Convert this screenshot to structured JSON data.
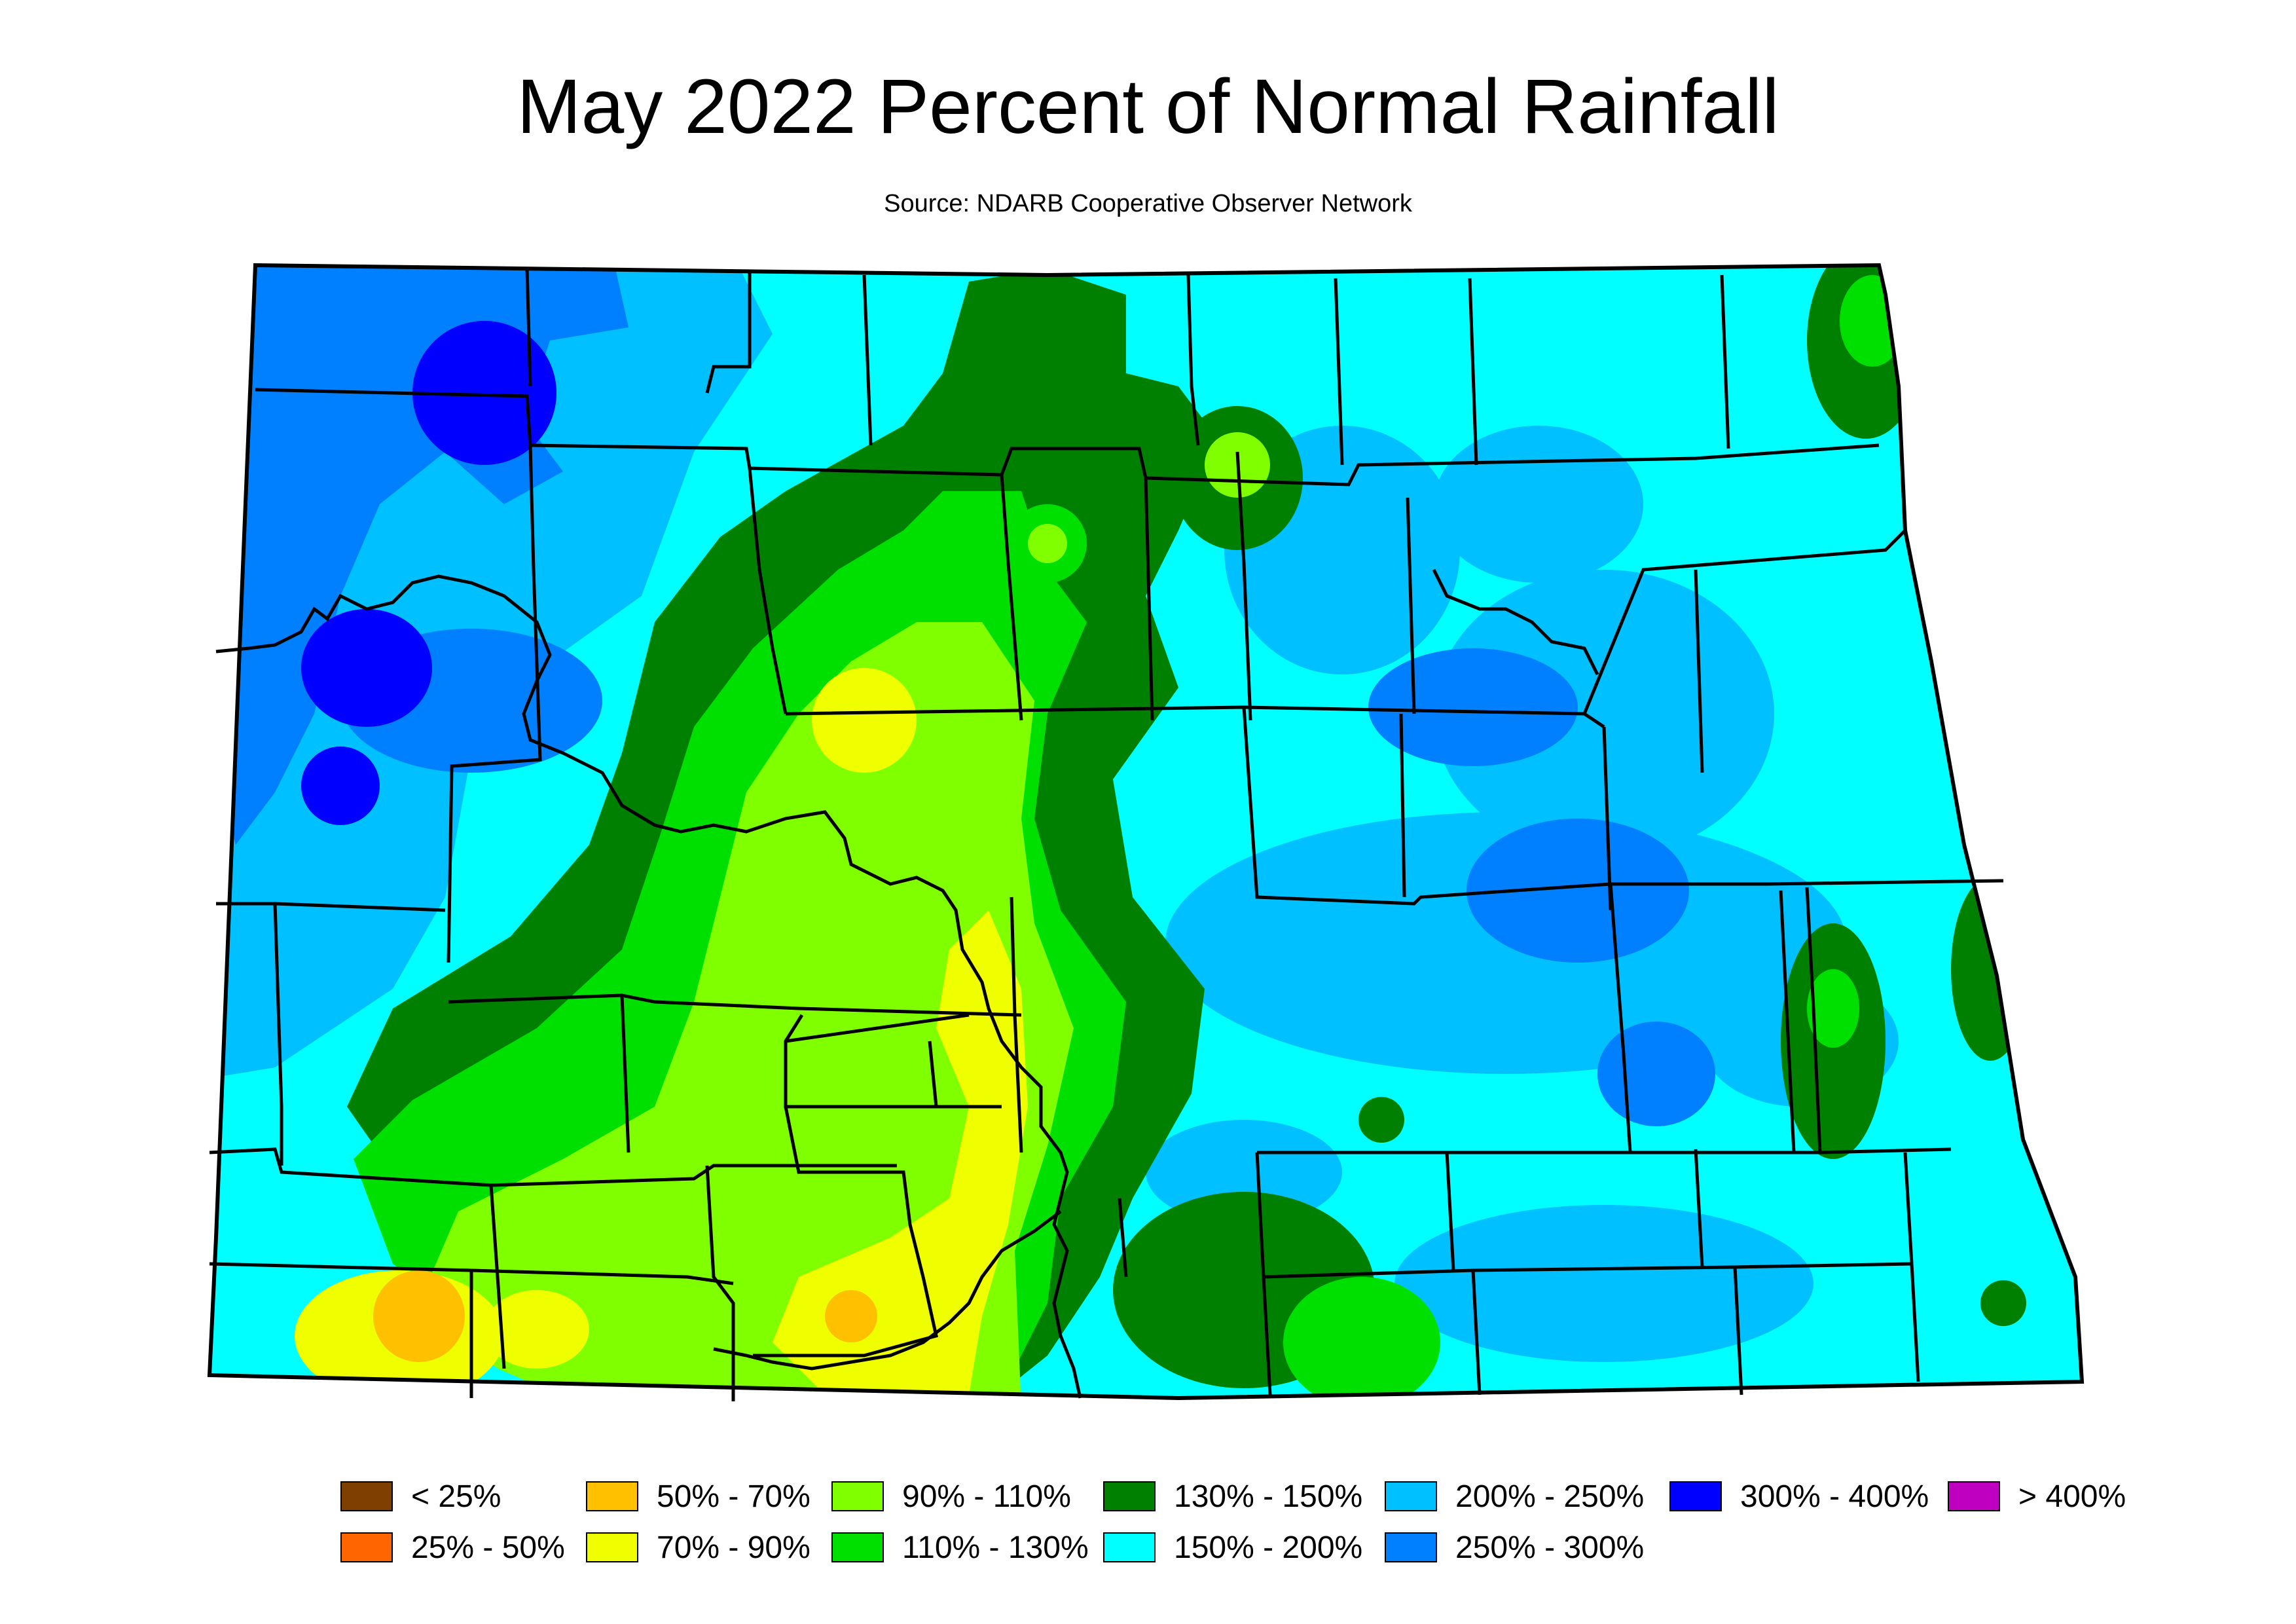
{
  "title": "May 2022 Percent of Normal Rainfall",
  "subtitle": "Source: NDARB Cooperative Observer Network",
  "legend": [
    {
      "label": "< 25%",
      "color": "#7f3f00"
    },
    {
      "label": "25% - 50%",
      "color": "#ff6600"
    },
    {
      "label": "50% - 70%",
      "color": "#ffc000"
    },
    {
      "label": "70% - 90%",
      "color": "#f0ff00"
    },
    {
      "label": "90% - 110%",
      "color": "#80ff00"
    },
    {
      "label": "110% - 130%",
      "color": "#00e000"
    },
    {
      "label": "130% - 150%",
      "color": "#008000"
    },
    {
      "label": "150% - 200%",
      "color": "#00ffff"
    },
    {
      "label": "200% - 250%",
      "color": "#00c0ff"
    },
    {
      "label": "250% - 300%",
      "color": "#0080ff"
    },
    {
      "label": "300% - 400%",
      "color": "#0000ff"
    },
    {
      "label": "> 400%",
      "color": "#c000c0"
    }
  ]
}
